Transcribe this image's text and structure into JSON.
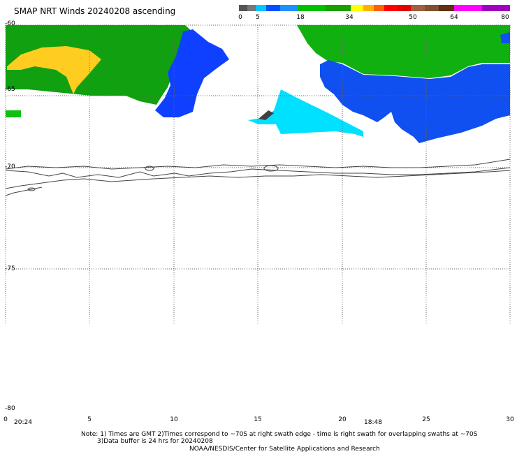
{
  "title": "SMAP NRT Winds 20240208 ascending",
  "colorbar": {
    "labels": [
      "0",
      "5",
      "18",
      "34",
      "50",
      "64",
      "80"
    ],
    "colors": [
      "#555555",
      "#777777",
      "#00c8ff",
      "#0050ff",
      "#1e90ff",
      "#00c000",
      "#19a000",
      "#ffff00",
      "#ffb000",
      "#ff6000",
      "#ff0000",
      "#e00000",
      "#a06040",
      "#805030",
      "#603010",
      "#ff00ff",
      "#a000c0"
    ]
  },
  "axes": {
    "y_ticks": [
      "-60",
      "-65",
      "-70",
      "-75",
      "-80"
    ],
    "x_ticks": [
      "0",
      "5",
      "10",
      "15",
      "20",
      "25",
      "30"
    ]
  },
  "times": {
    "left": "20:24",
    "middle": "18:48"
  },
  "notes": {
    "line1": "Note: 1) Times are GMT 2)Times correspond to ~70S at right swath edge - time is right swath for overlapping swaths at ~70S",
    "line2": "3)Data buffer is 24 hrs for 20240208",
    "line3": "NOAA/NESDIS/Center for Satellite Applications and Research"
  },
  "legend_colors": {
    "calm": "#404040",
    "light": "#00e0ff",
    "moderate": "#0040ff",
    "strong": "#00c000",
    "gale": "#ffd020"
  }
}
